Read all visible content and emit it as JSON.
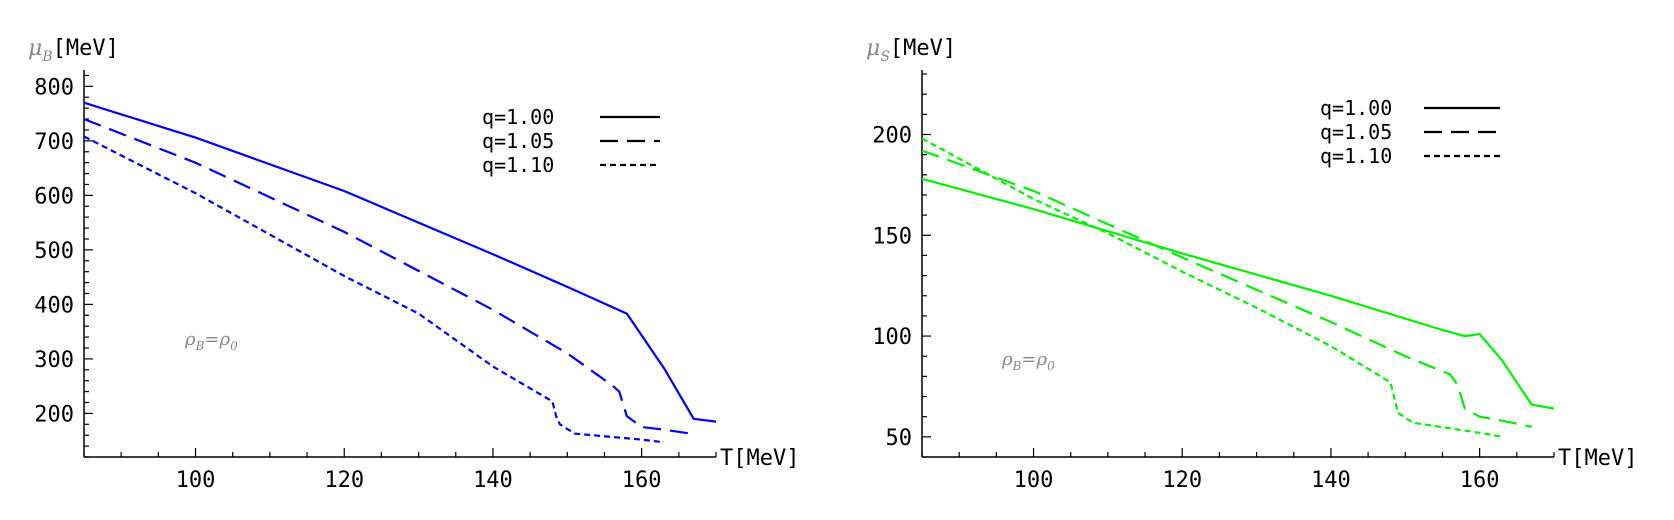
{
  "chart_data": [
    {
      "type": "line",
      "color": "#0000ee",
      "ylabel_symbol": "μ",
      "ylabel_sub": "B",
      "ylabel_unit": "[MeV]",
      "xlabel": "T[MeV]",
      "xlim": [
        85,
        170
      ],
      "ylim": [
        120,
        830
      ],
      "xticks": [
        100,
        120,
        140,
        160
      ],
      "yticks": [
        200,
        300,
        400,
        500,
        600,
        700,
        800
      ],
      "annotation": {
        "symbol": "ρ",
        "sub1": "B",
        "eq": "=",
        "symbol2": "ρ",
        "sub2": "0"
      },
      "series": [
        {
          "name": "q=1.00",
          "dash": "solid",
          "x": [
            85,
            100,
            120,
            140,
            150,
            158,
            163,
            167,
            170
          ],
          "y": [
            770,
            706,
            608,
            492,
            432,
            383,
            283,
            190,
            185
          ]
        },
        {
          "name": "q=1.05",
          "dash": "long",
          "x": [
            85,
            100,
            120,
            140,
            150,
            156,
            157,
            158,
            160,
            163,
            167
          ],
          "y": [
            740,
            660,
            533,
            390,
            310,
            252,
            240,
            195,
            175,
            170,
            162
          ]
        },
        {
          "name": "q=1.10",
          "dash": "short",
          "x": [
            85,
            100,
            120,
            130,
            140,
            148,
            148.5,
            149,
            151,
            160,
            163
          ],
          "y": [
            708,
            604,
            452,
            383,
            286,
            222,
            195,
            180,
            163,
            152,
            147
          ]
        }
      ]
    },
    {
      "type": "line",
      "color": "#00ee00",
      "ylabel_symbol": "μ",
      "ylabel_sub": "S",
      "ylabel_unit": "[MeV]",
      "xlabel": "T[MeV]",
      "xlim": [
        85,
        170
      ],
      "ylim": [
        40,
        232
      ],
      "xticks": [
        100,
        120,
        140,
        160
      ],
      "yticks": [
        50,
        100,
        150,
        200
      ],
      "annotation": {
        "symbol": "ρ",
        "sub1": "B",
        "eq": "=",
        "symbol2": "ρ",
        "sub2": "0"
      },
      "series": [
        {
          "name": "q=1.00",
          "dash": "solid",
          "x": [
            85,
            100,
            120,
            140,
            155,
            158,
            160,
            163,
            167,
            170
          ],
          "y": [
            178,
            163,
            141,
            120,
            103,
            100,
            101,
            88,
            66,
            64
          ]
        },
        {
          "name": "q=1.05",
          "dash": "long",
          "x": [
            85,
            100,
            120,
            140,
            150,
            156,
            157,
            158,
            160,
            163,
            167
          ],
          "y": [
            192,
            172,
            139,
            107,
            90,
            81,
            76,
            64,
            60,
            58,
            55
          ]
        },
        {
          "name": "q=1.10",
          "dash": "short",
          "x": [
            85,
            100,
            110,
            120,
            130,
            140,
            148,
            148.5,
            149,
            151,
            160,
            163
          ],
          "y": [
            198,
            168,
            151,
            132,
            114,
            95,
            77,
            70,
            62,
            57,
            52,
            50
          ]
        }
      ]
    }
  ]
}
